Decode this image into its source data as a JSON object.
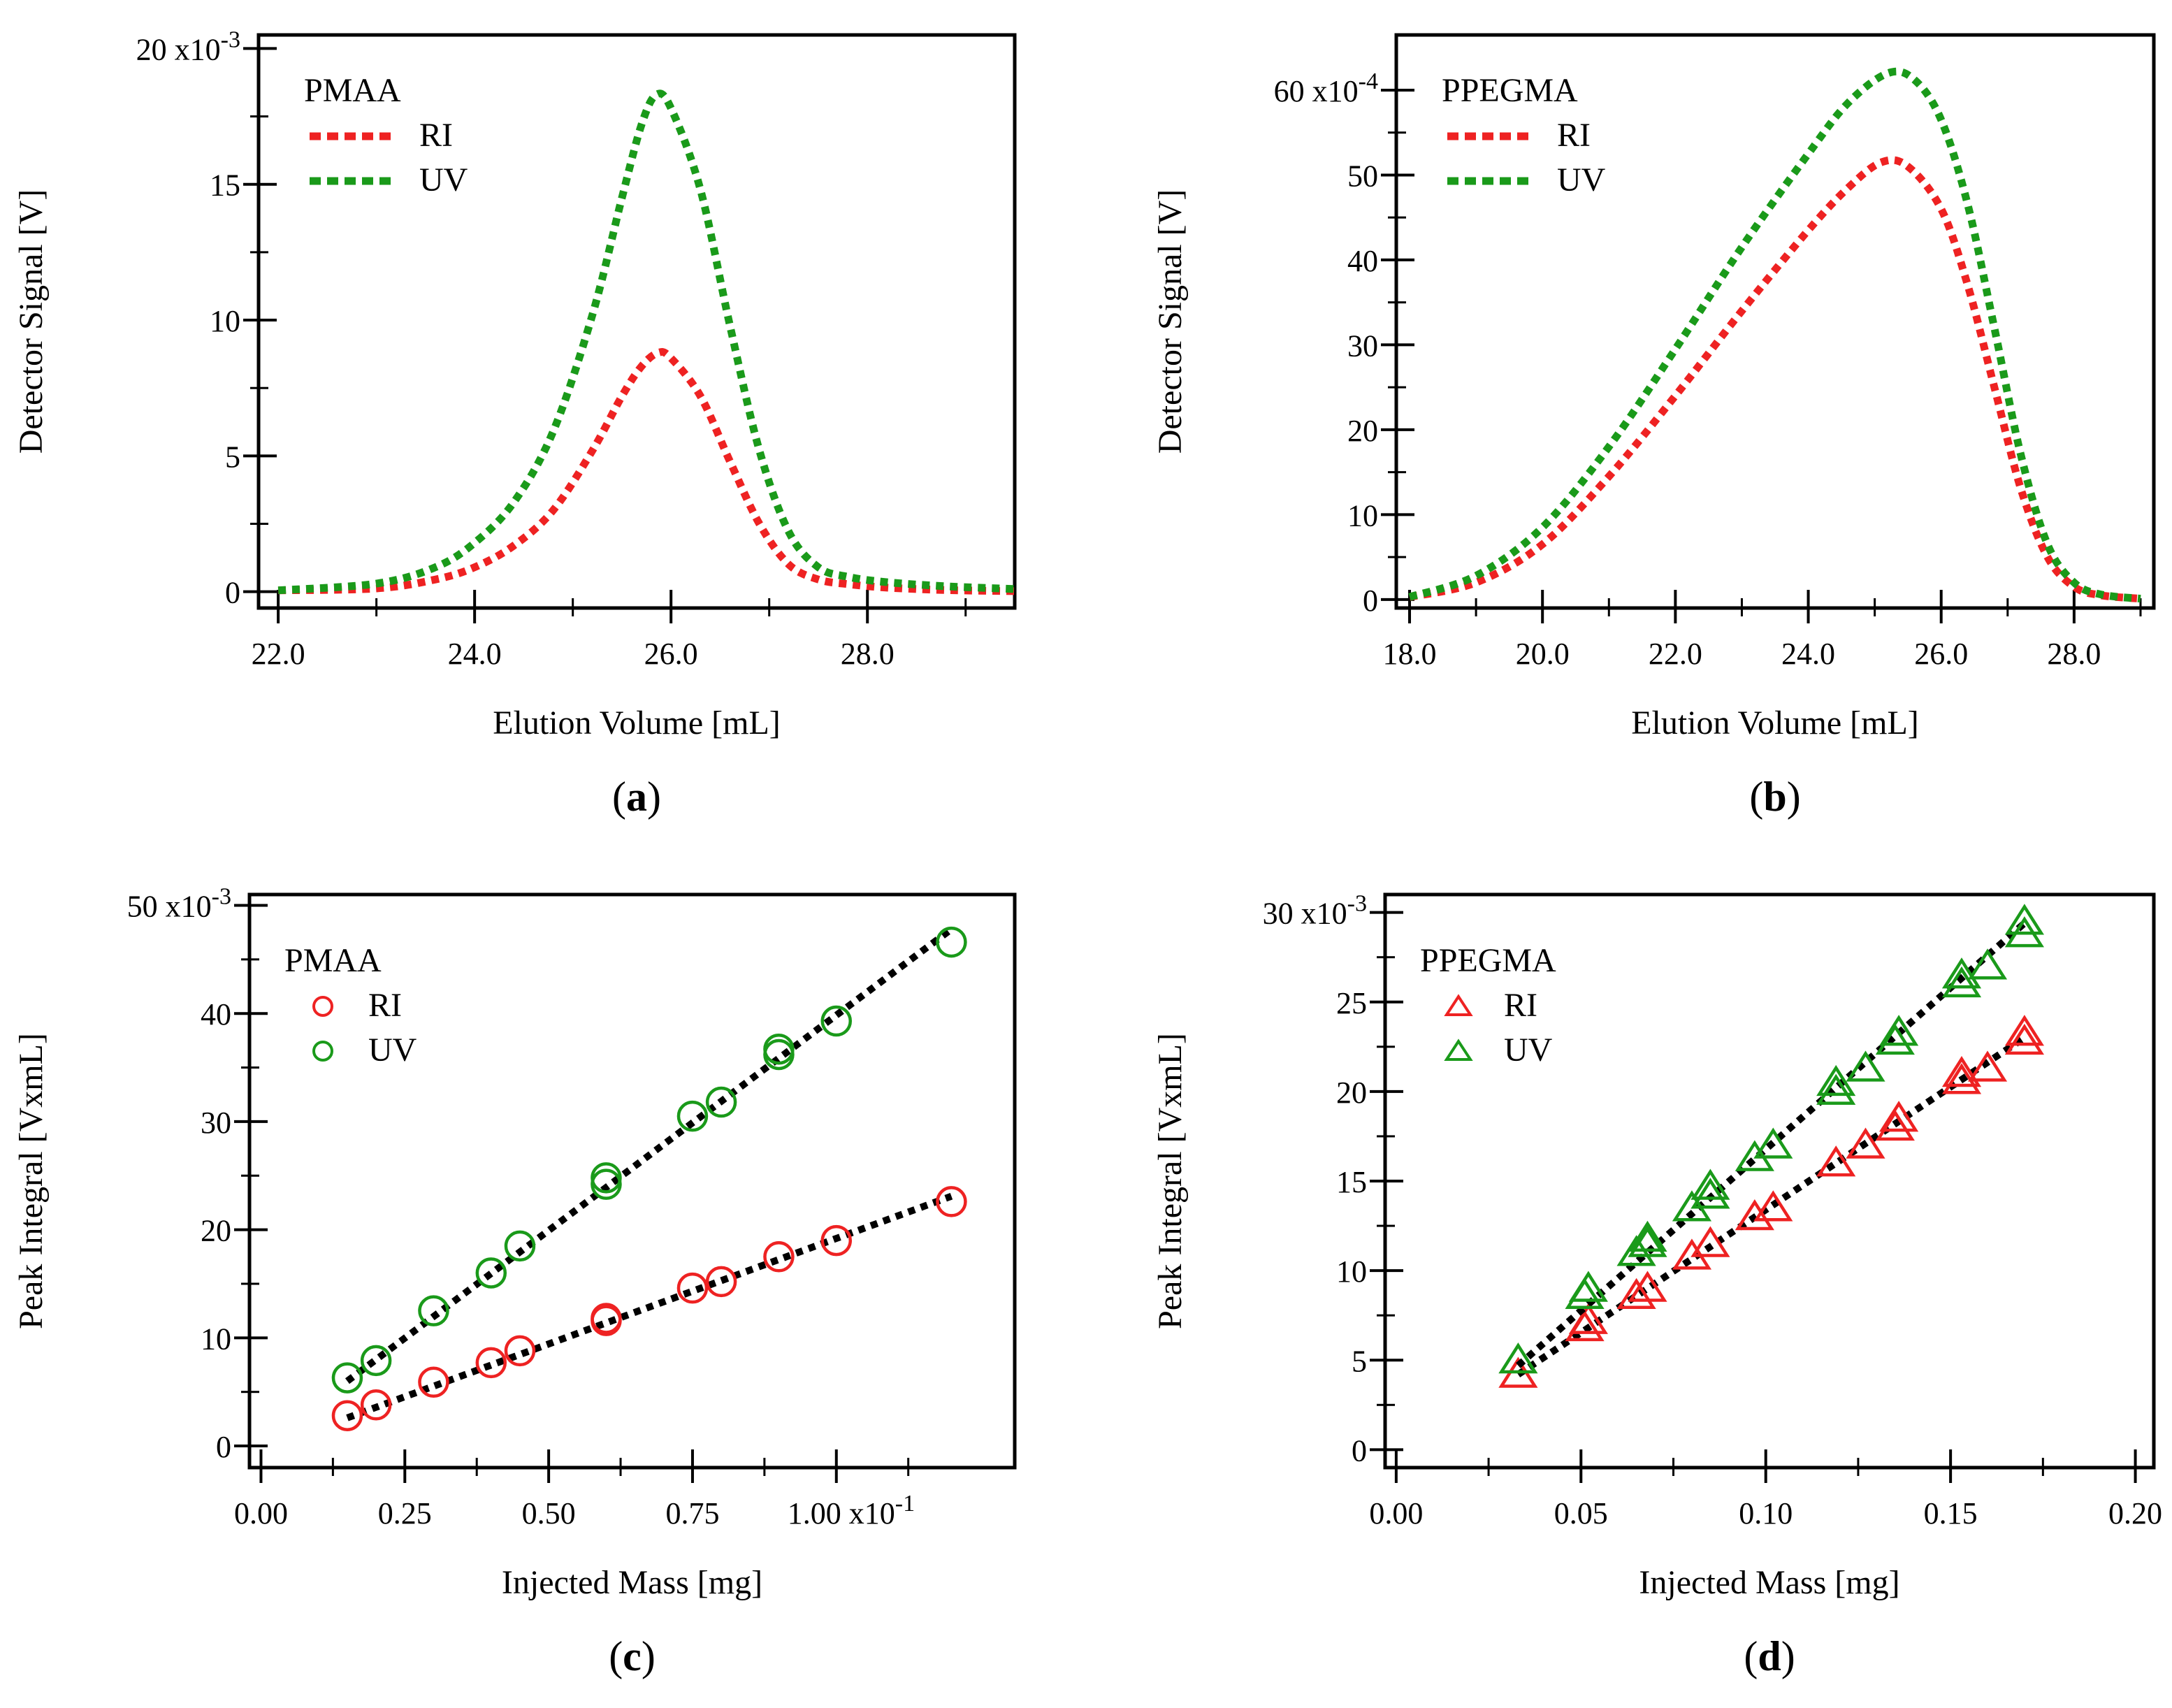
{
  "chart_data": [
    {
      "panel": "a",
      "type": "line",
      "caption": "a",
      "xlabel": "Elution Volume [mL]",
      "ylabel": "Detector Signal [V]",
      "xlim": [
        21.8,
        29.5
      ],
      "ylim": [
        -0.6,
        20.5
      ],
      "xticks": [
        22,
        24,
        26,
        28
      ],
      "xtick_labels": [
        "22.0",
        "24.0",
        "26.0",
        "28.0"
      ],
      "xminor": [
        23,
        25,
        27,
        29
      ],
      "yticks": [
        0,
        5,
        10,
        15,
        20
      ],
      "ytick_labels": [
        "0",
        "5",
        "10",
        "15",
        "20 x10"
      ],
      "yexp": "-3",
      "legend_title": "PMAA",
      "series": [
        {
          "name": "RI",
          "color": "#ee2222",
          "x": [
            22.0,
            23.0,
            23.6,
            24.0,
            24.4,
            24.8,
            25.2,
            25.5,
            25.7,
            25.87,
            26.0,
            26.3,
            26.6,
            26.9,
            27.2,
            27.5,
            27.8,
            28.2,
            28.8,
            29.5
          ],
          "y": [
            0.05,
            0.12,
            0.45,
            0.9,
            1.7,
            3.0,
            5.2,
            7.2,
            8.3,
            8.8,
            8.6,
            7.2,
            4.8,
            2.5,
            1.0,
            0.45,
            0.28,
            0.15,
            0.06,
            0.02
          ]
        },
        {
          "name": "UV",
          "color": "#1a9a1a",
          "x": [
            22.0,
            23.0,
            23.6,
            24.0,
            24.4,
            24.8,
            25.2,
            25.5,
            25.7,
            25.85,
            26.0,
            26.3,
            26.6,
            26.9,
            27.2,
            27.5,
            27.8,
            28.2,
            28.8,
            29.5
          ],
          "y": [
            0.05,
            0.3,
            0.9,
            1.8,
            3.3,
            5.9,
            10.2,
            14.5,
            17.2,
            18.3,
            17.8,
            14.8,
            9.8,
            5.2,
            2.2,
            0.9,
            0.55,
            0.35,
            0.2,
            0.1
          ]
        }
      ]
    },
    {
      "panel": "b",
      "type": "line",
      "caption": "b",
      "xlabel": "Elution Volume [mL]",
      "ylabel": "Detector Signal [V]",
      "xlim": [
        17.8,
        29.2
      ],
      "ylim": [
        -1,
        66.5
      ],
      "xticks": [
        18,
        20,
        22,
        24,
        26,
        28
      ],
      "xtick_labels": [
        "18.0",
        "20.0",
        "22.0",
        "24.0",
        "26.0",
        "28.0"
      ],
      "xminor": [
        19,
        21,
        23,
        25,
        27,
        29
      ],
      "yticks": [
        0,
        10,
        20,
        30,
        40,
        50,
        60
      ],
      "ytick_labels": [
        "0",
        "10",
        "20",
        "30",
        "40",
        "50",
        "60 x10"
      ],
      "yexp": "-4",
      "legend_title": "PPEGMA",
      "series": [
        {
          "name": "RI",
          "color": "#ee2222",
          "x": [
            18.0,
            19.0,
            20.0,
            21.0,
            22.0,
            23.0,
            24.0,
            24.6,
            25.1,
            25.5,
            26.0,
            26.4,
            26.8,
            27.2,
            27.6,
            28.0,
            28.4,
            29.0
          ],
          "y": [
            0.3,
            2.0,
            6.5,
            14.5,
            24.0,
            34.0,
            43.5,
            48.5,
            51.5,
            51.0,
            46.0,
            37.0,
            25.0,
            13.0,
            5.0,
            1.5,
            0.5,
            0.1
          ]
        },
        {
          "name": "UV",
          "color": "#1a9a1a",
          "x": [
            18.0,
            19.0,
            20.0,
            21.0,
            22.0,
            23.0,
            24.0,
            24.6,
            25.2,
            25.6,
            26.0,
            26.4,
            26.8,
            27.2,
            27.6,
            28.0,
            28.4,
            29.0
          ],
          "y": [
            0.3,
            2.8,
            8.5,
            18.0,
            29.5,
            41.5,
            52.5,
            58.5,
            62.0,
            61.2,
            56.5,
            46.5,
            32.0,
            17.0,
            6.5,
            2.0,
            0.6,
            0.1
          ]
        }
      ]
    },
    {
      "panel": "c",
      "type": "scatter",
      "caption": "c",
      "xlabel": "Injected Mass [mg]",
      "ylabel": "Peak Integral [VxmL]",
      "xlim": [
        -0.02,
        1.31
      ],
      "ylim": [
        -2,
        51
      ],
      "xticks": [
        0,
        0.25,
        0.5,
        0.75,
        1.0
      ],
      "xtick_labels": [
        "0.00",
        "0.25",
        "0.50",
        "0.75",
        "1.00 x10"
      ],
      "xexp": "-1",
      "xminor": [
        0.125,
        0.375,
        0.625,
        0.875,
        1.125
      ],
      "yticks": [
        0,
        10,
        20,
        30,
        40,
        50
      ],
      "ytick_labels": [
        "0",
        "10",
        "20",
        "30",
        "40",
        "50 x10"
      ],
      "yexp": "-3",
      "legend_title": "PMAA",
      "marker": "circle",
      "series": [
        {
          "name": "RI",
          "color": "#ee2222",
          "x": [
            0.15,
            0.2,
            0.3,
            0.4,
            0.45,
            0.6,
            0.6,
            0.75,
            0.8,
            0.9,
            1.0,
            1.2
          ],
          "y": [
            2.8,
            3.8,
            5.9,
            7.7,
            8.8,
            11.6,
            11.8,
            14.6,
            15.2,
            17.5,
            19.0,
            22.6
          ],
          "fit": [
            [
              0.15,
              2.6
            ],
            [
              1.2,
              23.1
            ]
          ]
        },
        {
          "name": "UV",
          "color": "#1a9a1a",
          "x": [
            0.15,
            0.2,
            0.3,
            0.4,
            0.45,
            0.6,
            0.6,
            0.75,
            0.8,
            0.9,
            0.9,
            1.0,
            1.2
          ],
          "y": [
            6.3,
            7.9,
            12.5,
            16.0,
            18.5,
            24.2,
            24.8,
            30.5,
            31.8,
            36.2,
            36.7,
            39.3,
            46.6
          ],
          "fit": [
            [
              0.15,
              6.0
            ],
            [
              1.2,
              47.8
            ]
          ]
        }
      ]
    },
    {
      "panel": "d",
      "type": "scatter",
      "caption": "d",
      "xlabel": "Injected Mass [mg]",
      "ylabel": "Peak Integral [VxmL]",
      "xlim": [
        -0.003,
        0.205
      ],
      "ylim": [
        -1,
        31
      ],
      "xticks": [
        0,
        0.05,
        0.1,
        0.15,
        0.2
      ],
      "xtick_labels": [
        "0.00",
        "0.05",
        "0.10",
        "0.15",
        "0.20"
      ],
      "xminor": [
        0.025,
        0.075,
        0.125,
        0.175
      ],
      "yticks": [
        0,
        5,
        10,
        15,
        20,
        25,
        30
      ],
      "ytick_labels": [
        "0",
        "5",
        "10",
        "15",
        "20",
        "25",
        "30 x10"
      ],
      "yexp": "-3",
      "legend_title": "PPEGMA",
      "marker": "triangle",
      "series": [
        {
          "name": "RI",
          "color": "#ee2222",
          "x": [
            0.033,
            0.051,
            0.052,
            0.065,
            0.068,
            0.08,
            0.085,
            0.097,
            0.102,
            0.119,
            0.127,
            0.135,
            0.136,
            0.153,
            0.153,
            0.16,
            0.17,
            0.17
          ],
          "y": [
            4.2,
            6.8,
            7.2,
            8.6,
            9.0,
            10.8,
            11.5,
            13.0,
            13.5,
            16.0,
            17.0,
            18.0,
            18.5,
            20.6,
            21.0,
            21.3,
            22.8,
            23.3
          ],
          "fit": [
            [
              0.033,
              4.2
            ],
            [
              0.17,
              23.0
            ]
          ]
        },
        {
          "name": "UV",
          "color": "#1a9a1a",
          "x": [
            0.033,
            0.051,
            0.052,
            0.065,
            0.068,
            0.068,
            0.08,
            0.085,
            0.085,
            0.097,
            0.102,
            0.119,
            0.119,
            0.127,
            0.135,
            0.136,
            0.153,
            0.153,
            0.16,
            0.17,
            0.17
          ],
          "y": [
            5.0,
            8.6,
            9.0,
            11.0,
            11.5,
            11.8,
            13.5,
            14.2,
            14.7,
            16.3,
            17.0,
            20.0,
            20.5,
            21.3,
            22.8,
            23.3,
            26.0,
            26.5,
            27.0,
            28.8,
            29.5
          ],
          "fit": [
            [
              0.033,
              4.7
            ],
            [
              0.17,
              29.4
            ]
          ]
        }
      ]
    }
  ]
}
